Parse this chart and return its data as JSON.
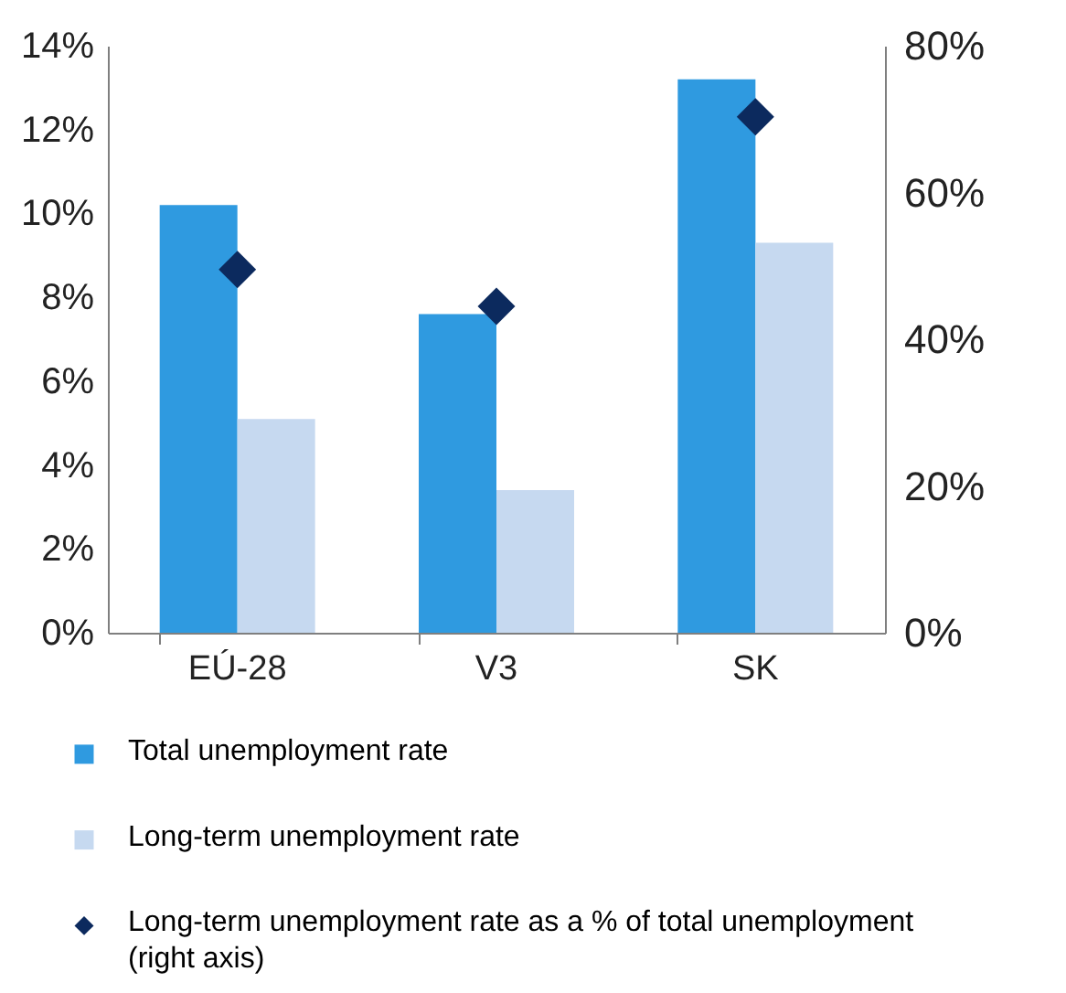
{
  "chart_data": {
    "type": "bar",
    "categories": [
      "EÚ-28",
      "V3",
      "SK"
    ],
    "series": [
      {
        "name": "Total unemployment rate",
        "color": "#2f9ae0",
        "values": [
          10.2,
          7.6,
          13.2
        ]
      },
      {
        "name": "Long-term unemployment rate",
        "color": "#c6d9f0",
        "values": [
          5.1,
          3.4,
          9.3
        ]
      },
      {
        "name": "Long-term unemployment rate as a % of total unemployment (right axis)",
        "type": "scatter",
        "marker": "diamond",
        "axis": "y2",
        "color": "#0c2a5e",
        "values": [
          49.5,
          44.5,
          70.3
        ]
      }
    ],
    "ylim": [
      0,
      14
    ],
    "yticks": [
      {
        "value": 0,
        "label": "0%"
      },
      {
        "value": 2,
        "label": "2%"
      },
      {
        "value": 4,
        "label": "4%"
      },
      {
        "value": 6,
        "label": "6%"
      },
      {
        "value": 8,
        "label": "8%"
      },
      {
        "value": 10,
        "label": "10%"
      },
      {
        "value": 12,
        "label": "12%"
      },
      {
        "value": 14,
        "label": "14%"
      }
    ],
    "y2lim": [
      0,
      80
    ],
    "y2ticks": [
      {
        "value": 0,
        "label": "0%"
      },
      {
        "value": 20,
        "label": "20%"
      },
      {
        "value": 40,
        "label": "40%"
      },
      {
        "value": 60,
        "label": "60%"
      },
      {
        "value": 80,
        "label": "80%"
      }
    ],
    "grid": false,
    "legend": "bottom"
  }
}
